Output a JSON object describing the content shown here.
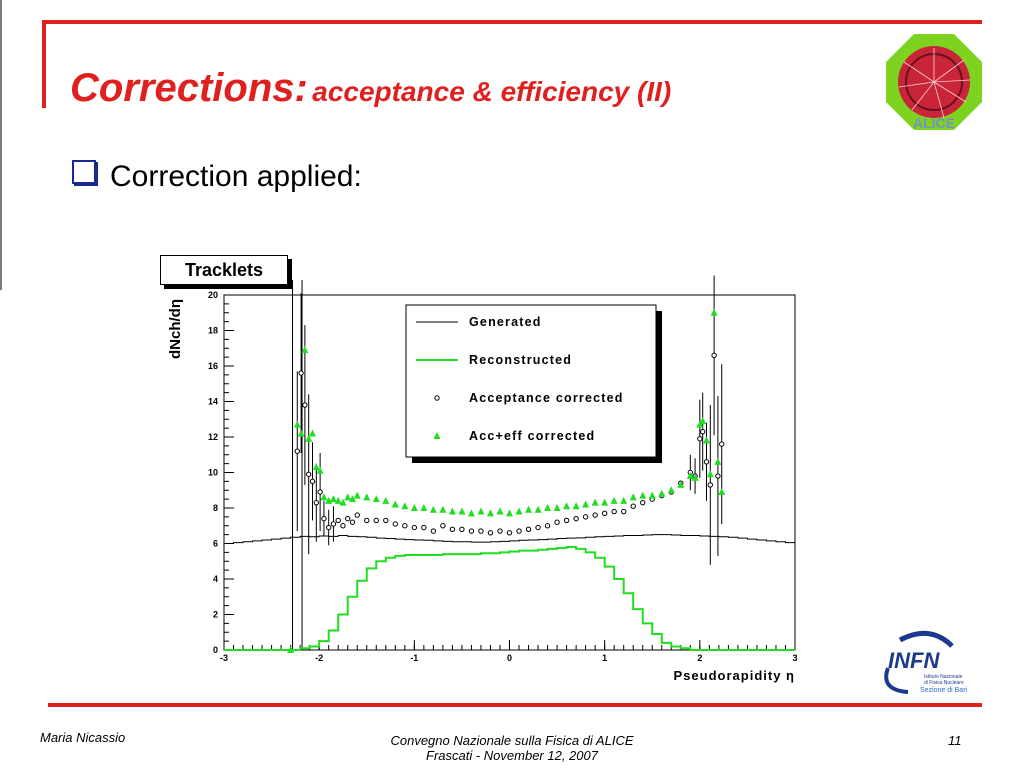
{
  "slide": {
    "title_main": "Corrections:",
    "title_sub": "acceptance & efficiency (II)",
    "bullet": "Correction applied:",
    "panel_label": "Tracklets",
    "logo_text": "ALICE",
    "infn_logo_text": "INFN",
    "infn_sub1": "Istituto Nazionale",
    "infn_sub2": "di Fisica Nucleare",
    "infn_sub3": "Sezione di Bari",
    "footer_author": "Maria Nicassio",
    "footer_conf_line1": "Convegno Nazionale sulla Fisica di ALICE",
    "footer_conf_line2": "Frascati -  November 12, 2007",
    "page_number": "11",
    "accent_color": "#e0201e"
  },
  "chart_data": {
    "type": "line",
    "xlabel": "Pseudorapidity η",
    "ylabel": "dNch/dη",
    "xlim": [
      -3,
      3
    ],
    "ylim": [
      0,
      20
    ],
    "x_ticks": [
      -3,
      -2,
      -1,
      0,
      1,
      2,
      3
    ],
    "y_ticks": [
      0,
      2,
      4,
      6,
      8,
      10,
      12,
      14,
      16,
      18,
      20
    ],
    "grid": false,
    "legend_position": "top-center",
    "series": [
      {
        "name": "Generated",
        "style": "step-line",
        "color": "#000000",
        "x": [
          -3,
          -2.9,
          -2.8,
          -2.7,
          -2.6,
          -2.5,
          -2.4,
          -2.3,
          -2.2,
          -2.1,
          -2.0,
          -1.9,
          -1.8,
          -1.7,
          -1.6,
          -1.5,
          -1.4,
          -1.3,
          -1.2,
          -1.1,
          -1.0,
          -0.9,
          -0.8,
          -0.7,
          -0.6,
          -0.5,
          -0.4,
          -0.3,
          -0.2,
          -0.1,
          0.0,
          0.1,
          0.2,
          0.3,
          0.4,
          0.5,
          0.6,
          0.7,
          0.8,
          0.9,
          1.0,
          1.1,
          1.2,
          1.3,
          1.4,
          1.5,
          1.6,
          1.7,
          1.8,
          1.9,
          2.0,
          2.1,
          2.2,
          2.3,
          2.4,
          2.5,
          2.6,
          2.7,
          2.8,
          2.9
        ],
        "y": [
          6.0,
          6.05,
          6.1,
          6.15,
          6.2,
          6.25,
          6.3,
          6.35,
          6.4,
          6.38,
          6.42,
          6.4,
          6.45,
          6.4,
          6.38,
          6.35,
          6.3,
          6.28,
          6.25,
          6.22,
          6.2,
          6.18,
          6.15,
          6.12,
          6.1,
          6.1,
          6.08,
          6.08,
          6.1,
          6.12,
          6.15,
          6.18,
          6.2,
          6.22,
          6.25,
          6.28,
          6.3,
          6.32,
          6.35,
          6.38,
          6.4,
          6.42,
          6.45,
          6.45,
          6.48,
          6.5,
          6.5,
          6.48,
          6.45,
          6.45,
          6.42,
          6.4,
          6.38,
          6.35,
          6.3,
          6.25,
          6.2,
          6.15,
          6.1,
          6.05
        ]
      },
      {
        "name": "Reconstructed",
        "style": "step-line",
        "color": "#22dd22",
        "x": [
          -3,
          -2.9,
          -2.8,
          -2.7,
          -2.6,
          -2.5,
          -2.4,
          -2.3,
          -2.2,
          -2.1,
          -2.0,
          -1.9,
          -1.8,
          -1.7,
          -1.6,
          -1.5,
          -1.4,
          -1.3,
          -1.2,
          -1.1,
          -1.0,
          -0.9,
          -0.8,
          -0.7,
          -0.6,
          -0.5,
          -0.4,
          -0.3,
          -0.2,
          -0.1,
          0.0,
          0.1,
          0.2,
          0.3,
          0.4,
          0.5,
          0.6,
          0.7,
          0.8,
          0.9,
          1.0,
          1.1,
          1.2,
          1.3,
          1.4,
          1.5,
          1.6,
          1.7,
          1.8,
          1.9,
          2.0,
          2.1,
          2.2,
          2.3,
          2.4,
          2.5,
          2.6,
          2.7,
          2.8,
          2.9
        ],
        "y": [
          0,
          0,
          0,
          0,
          0,
          0,
          0,
          0,
          0.1,
          0.2,
          0.5,
          1.1,
          2.0,
          3.0,
          3.9,
          4.6,
          5.0,
          5.2,
          5.3,
          5.35,
          5.35,
          5.35,
          5.35,
          5.4,
          5.4,
          5.4,
          5.4,
          5.45,
          5.45,
          5.5,
          5.55,
          5.6,
          5.6,
          5.65,
          5.7,
          5.75,
          5.8,
          5.7,
          5.5,
          5.2,
          4.7,
          4.0,
          3.2,
          2.3,
          1.5,
          0.9,
          0.4,
          0.2,
          0.1,
          0,
          0,
          0,
          0,
          0,
          0,
          0,
          0,
          0,
          0,
          0
        ]
      },
      {
        "name": "Acceptance corrected",
        "style": "open-circle",
        "color": "#000000",
        "x": [
          -2.23,
          -2.19,
          -2.15,
          -2.11,
          -2.07,
          -2.03,
          -1.99,
          -1.95,
          -1.9,
          -1.85,
          -1.8,
          -1.75,
          -1.7,
          -1.65,
          -1.6,
          -1.5,
          -1.4,
          -1.3,
          -1.2,
          -1.1,
          -1.0,
          -0.9,
          -0.8,
          -0.7,
          -0.6,
          -0.5,
          -0.4,
          -0.3,
          -0.2,
          -0.1,
          0.0,
          0.1,
          0.2,
          0.3,
          0.4,
          0.5,
          0.6,
          0.7,
          0.8,
          0.9,
          1.0,
          1.1,
          1.2,
          1.3,
          1.4,
          1.5,
          1.6,
          1.7,
          1.8,
          1.9,
          1.95,
          2.0,
          2.03,
          2.07,
          2.11,
          2.15,
          2.19,
          2.23
        ],
        "y": [
          11.2,
          15.6,
          13.8,
          9.9,
          9.5,
          8.3,
          8.9,
          7.4,
          6.9,
          7.1,
          7.3,
          7.0,
          7.4,
          7.2,
          7.6,
          7.3,
          7.3,
          7.3,
          7.1,
          7.0,
          6.9,
          6.9,
          6.7,
          7.0,
          6.8,
          6.8,
          6.7,
          6.7,
          6.6,
          6.7,
          6.6,
          6.7,
          6.8,
          6.9,
          7.0,
          7.2,
          7.3,
          7.4,
          7.5,
          7.6,
          7.7,
          7.8,
          7.8,
          8.1,
          8.3,
          8.5,
          8.7,
          8.9,
          9.4,
          10.0,
          9.8,
          11.9,
          12.3,
          10.6,
          9.3,
          16.6,
          9.8,
          11.6
        ]
      },
      {
        "name": "Acc+eff corrected",
        "style": "filled-triangle",
        "color": "#22dd22",
        "x": [
          -2.3,
          -2.23,
          -2.19,
          -2.15,
          -2.11,
          -2.07,
          -2.03,
          -1.99,
          -1.95,
          -1.9,
          -1.85,
          -1.8,
          -1.75,
          -1.7,
          -1.65,
          -1.6,
          -1.5,
          -1.4,
          -1.3,
          -1.2,
          -1.1,
          -1.0,
          -0.9,
          -0.8,
          -0.7,
          -0.6,
          -0.5,
          -0.4,
          -0.3,
          -0.2,
          -0.1,
          0.0,
          0.1,
          0.2,
          0.3,
          0.4,
          0.5,
          0.6,
          0.7,
          0.8,
          0.9,
          1.0,
          1.1,
          1.2,
          1.3,
          1.4,
          1.5,
          1.6,
          1.7,
          1.8,
          1.9,
          1.95,
          2.0,
          2.03,
          2.07,
          2.11,
          2.15,
          2.19,
          2.23
        ],
        "y": [
          0,
          12.7,
          12.2,
          16.9,
          11.9,
          12.2,
          10.3,
          10.1,
          8.6,
          8.4,
          8.5,
          8.4,
          8.3,
          8.6,
          8.5,
          8.7,
          8.6,
          8.5,
          8.4,
          8.2,
          8.1,
          8.0,
          8.0,
          7.9,
          7.9,
          7.8,
          7.8,
          7.7,
          7.8,
          7.7,
          7.8,
          7.7,
          7.8,
          7.9,
          7.9,
          8.0,
          8.0,
          8.1,
          8.1,
          8.2,
          8.3,
          8.3,
          8.4,
          8.4,
          8.6,
          8.7,
          8.7,
          8.8,
          9.0,
          9.3,
          9.8,
          9.7,
          12.7,
          12.9,
          11.8,
          9.9,
          19.0,
          10.6,
          8.9
        ]
      }
    ]
  }
}
